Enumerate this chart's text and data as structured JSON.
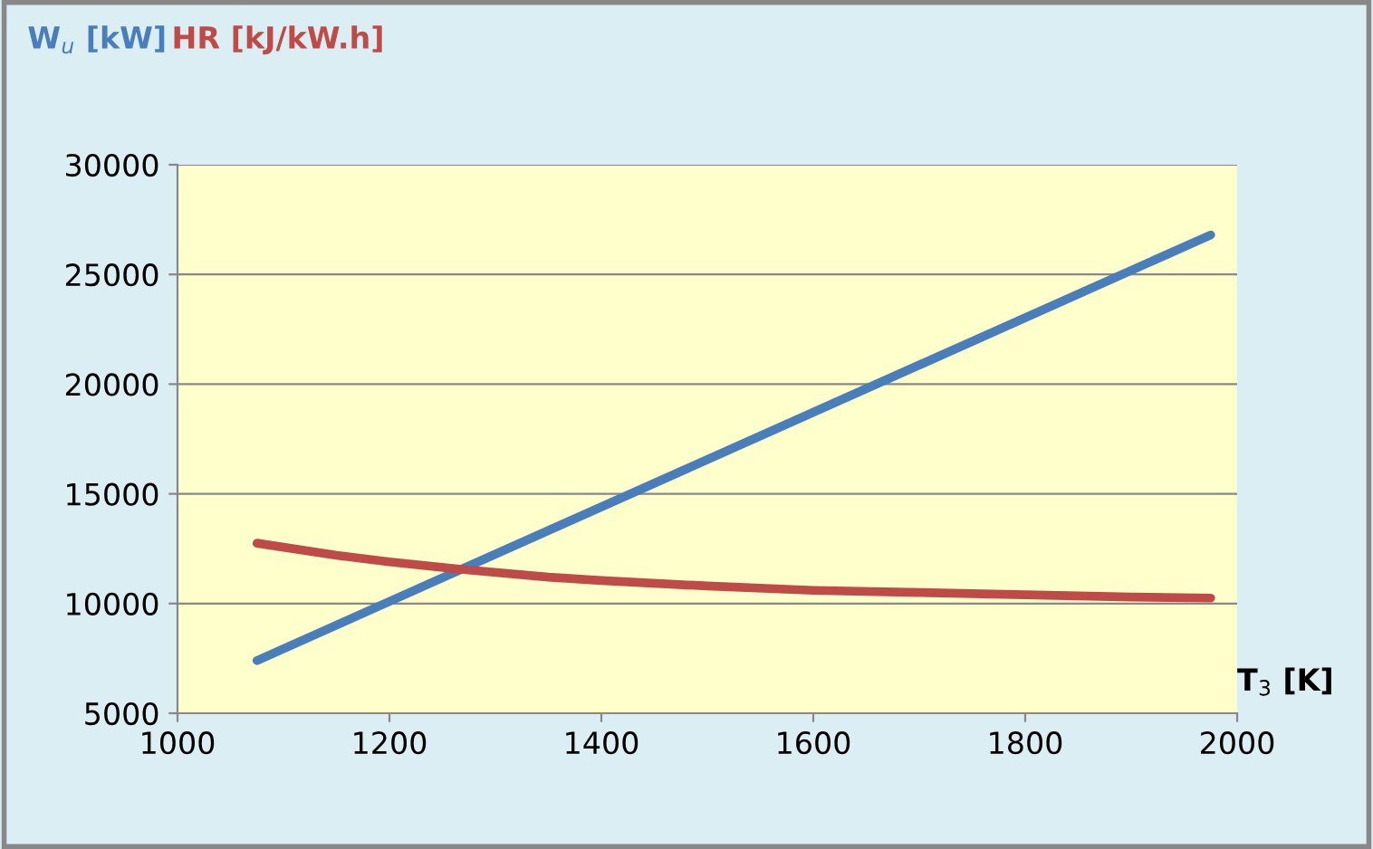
{
  "chart_data": {
    "type": "line",
    "xlabel": "T$_{3}$ [K]",
    "series": [
      {
        "name": "W$_{u}$ [kW]",
        "color": "#4a7ebb",
        "x": [
          1075,
          1975
        ],
        "values": [
          7400,
          26800
        ]
      },
      {
        "name": "HR [kJ/kW.h]",
        "color": "#be4b48",
        "x": [
          1075,
          1150,
          1200,
          1270,
          1350,
          1400,
          1500,
          1600,
          1700,
          1800,
          1900,
          1975
        ],
        "values": [
          12750,
          12200,
          11900,
          11550,
          11200,
          11050,
          10800,
          10600,
          10500,
          10400,
          10300,
          10250
        ]
      }
    ],
    "xlim": [
      1000,
      2000
    ],
    "xticks": [
      1000,
      1200,
      1400,
      1600,
      1800,
      2000
    ],
    "ylim": [
      5000,
      30000
    ],
    "yticks": [
      5000,
      10000,
      15000,
      20000,
      25000,
      30000
    ],
    "grid": "y",
    "legend": "top left",
    "marker": "none",
    "line_style": "solid"
  }
}
